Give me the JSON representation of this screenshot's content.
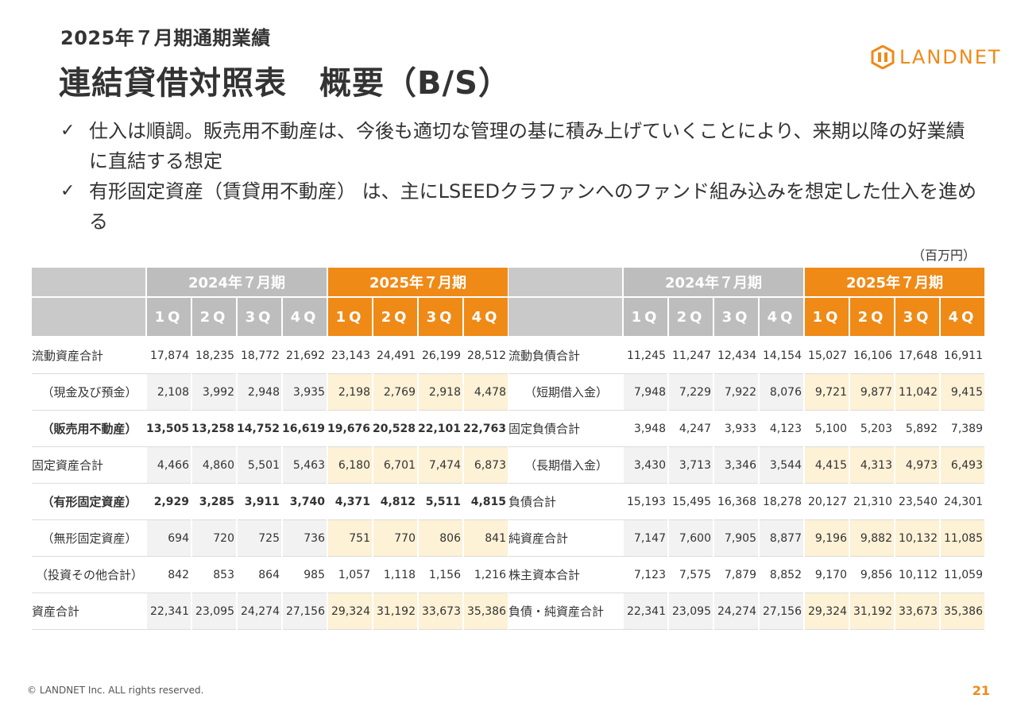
{
  "header": {
    "subtitle": "2025年７月期通期業績",
    "title": "連結貸借対照表　概要（B/S）",
    "logo_text": "LANDNET"
  },
  "bullets": [
    {
      "icon": "check-icon",
      "text": "仕入は順調。販売用不動産は、今後も適切な管理の基に積み上げていくことにより、来期以降の好業績に直結する想定"
    },
    {
      "icon": "check-icon",
      "text": "有形固定資産（賃貸用不動産） は、主にLSEEDクラファンへのファンド組み込みを想定した仕入を進める"
    }
  ],
  "unit": "（百万円）",
  "colors": {
    "accent": "#ef8a17",
    "header_gray": "#bdbdbd",
    "prev_shade": "#f2f2f2",
    "curr_shade": "#fdf1d6"
  },
  "table": {
    "groups": [
      "2024年７月期",
      "2025年７月期"
    ],
    "quarters": [
      "1Q",
      "2Q",
      "3Q",
      "4Q",
      "1Q",
      "2Q",
      "3Q",
      "4Q"
    ],
    "assets": [
      {
        "label": "流動資産合計",
        "indent": false,
        "bold": false,
        "shaded": false,
        "values": [
          "17,874",
          "18,235",
          "18,772",
          "21,692",
          "23,143",
          "24,491",
          "26,199",
          "28,512"
        ]
      },
      {
        "label": "（現金及び預金）",
        "indent": true,
        "bold": false,
        "shaded": true,
        "values": [
          "2,108",
          "3,992",
          "2,948",
          "3,935",
          "2,198",
          "2,769",
          "2,918",
          "4,478"
        ]
      },
      {
        "label": "（販売用不動産）",
        "indent": true,
        "bold": true,
        "shaded": false,
        "values": [
          "13,505",
          "13,258",
          "14,752",
          "16,619",
          "19,676",
          "20,528",
          "22,101",
          "22,763"
        ]
      },
      {
        "label": "固定資産合計",
        "indent": false,
        "bold": false,
        "shaded": true,
        "values": [
          "4,466",
          "4,860",
          "5,501",
          "5,463",
          "6,180",
          "6,701",
          "7,474",
          "6,873"
        ]
      },
      {
        "label": "（有形固定資産）",
        "indent": true,
        "bold": true,
        "shaded": false,
        "values": [
          "2,929",
          "3,285",
          "3,911",
          "3,740",
          "4,371",
          "4,812",
          "5,511",
          "4,815"
        ]
      },
      {
        "label": "（無形固定資産）",
        "indent": true,
        "bold": false,
        "shaded": true,
        "values": [
          "694",
          "720",
          "725",
          "736",
          "751",
          "770",
          "806",
          "841"
        ]
      },
      {
        "label": "（投資その他合計）",
        "indent": true,
        "bold": false,
        "shaded": false,
        "values": [
          "842",
          "853",
          "864",
          "985",
          "1,057",
          "1,118",
          "1,156",
          "1,216"
        ]
      },
      {
        "label": "資産合計",
        "indent": false,
        "bold": false,
        "shaded": true,
        "values": [
          "22,341",
          "23,095",
          "24,274",
          "27,156",
          "29,324",
          "31,192",
          "33,673",
          "35,386"
        ]
      }
    ],
    "liabilities": [
      {
        "label": "流動負債合計",
        "indent": false,
        "bold": false,
        "shaded": false,
        "values": [
          "11,245",
          "11,247",
          "12,434",
          "14,154",
          "15,027",
          "16,106",
          "17,648",
          "16,911"
        ]
      },
      {
        "label": "（短期借入金）",
        "indent": true,
        "bold": false,
        "shaded": true,
        "values": [
          "7,948",
          "7,229",
          "7,922",
          "8,076",
          "9,721",
          "9,877",
          "11,042",
          "9,415"
        ]
      },
      {
        "label": "固定負債合計",
        "indent": false,
        "bold": false,
        "shaded": false,
        "values": [
          "3,948",
          "4,247",
          "3,933",
          "4,123",
          "5,100",
          "5,203",
          "5,892",
          "7,389"
        ]
      },
      {
        "label": "（長期借入金）",
        "indent": true,
        "bold": false,
        "shaded": true,
        "values": [
          "3,430",
          "3,713",
          "3,346",
          "3,544",
          "4,415",
          "4,313",
          "4,973",
          "6,493"
        ]
      },
      {
        "label": "負債合計",
        "indent": false,
        "bold": false,
        "shaded": false,
        "values": [
          "15,193",
          "15,495",
          "16,368",
          "18,278",
          "20,127",
          "21,310",
          "23,540",
          "24,301"
        ]
      },
      {
        "label": "純資産合計",
        "indent": false,
        "bold": false,
        "shaded": true,
        "values": [
          "7,147",
          "7,600",
          "7,905",
          "8,877",
          "9,196",
          "9,882",
          "10,132",
          "11,085"
        ]
      },
      {
        "label": "株主資本合計",
        "indent": false,
        "bold": false,
        "shaded": false,
        "values": [
          "7,123",
          "7,575",
          "7,879",
          "8,852",
          "9,170",
          "9,856",
          "10,112",
          "11,059"
        ]
      },
      {
        "label": "負債・純資産合計",
        "indent": false,
        "bold": false,
        "shaded": true,
        "values": [
          "22,341",
          "23,095",
          "24,274",
          "27,156",
          "29,324",
          "31,192",
          "33,673",
          "35,386"
        ]
      }
    ]
  },
  "footer": {
    "copyright": "© LANDNET Inc. ALL rights reserved.",
    "page": "21"
  }
}
